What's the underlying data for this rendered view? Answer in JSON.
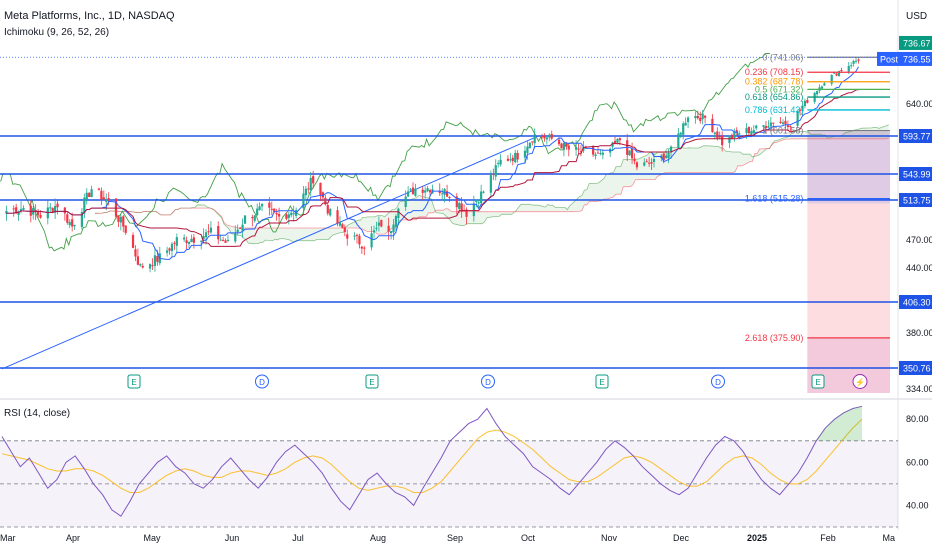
{
  "header": {
    "title": "Meta Platforms, Inc., 1D, NASDAQ",
    "indicator": "Ichimoku (9, 26, 52, 26)",
    "currency": "USD"
  },
  "rsi_panel": {
    "title": "RSI (14, close)"
  },
  "colors": {
    "candle_up": "#22ab94",
    "candle_down": "#f23645",
    "tenkan": "#2962ff",
    "kijun": "#b2163b",
    "leading_a": "#43a047",
    "leading_b": "#f7525f",
    "lagging": "#43a047",
    "level_line": "#1e53e5",
    "rsi_line": "#7e57c2",
    "rsi_ma": "#fbc02d",
    "rsi_band": "#7e57c2"
  },
  "chart_data": [
    {
      "type": "candlestick",
      "title": "Meta Platforms, Inc., 1D, NASDAQ",
      "ylabel": "USD",
      "ylim": [
        325,
        760
      ],
      "price_axis_ticks": [
        334.0,
        350.76,
        380.0,
        406.3,
        440.0,
        470.0,
        513.75,
        543.99,
        593.77,
        640.0,
        736.55,
        736.67
      ],
      "x_tick_labels": [
        "Mar",
        "Apr",
        "May",
        "Jun",
        "Jul",
        "Aug",
        "Sep",
        "Oct",
        "Nov",
        "Dec",
        "2025",
        "Feb",
        "Ma"
      ],
      "close_path": [
        [
          "2024-03-01",
          502
        ],
        [
          "2024-03-08",
          505
        ],
        [
          "2024-03-15",
          497
        ],
        [
          "2024-03-22",
          509
        ],
        [
          "2024-03-28",
          485
        ],
        [
          "2024-04-05",
          527
        ],
        [
          "2024-04-12",
          511
        ],
        [
          "2024-04-19",
          481
        ],
        [
          "2024-04-25",
          441
        ],
        [
          "2024-05-03",
          451
        ],
        [
          "2024-05-10",
          470
        ],
        [
          "2024-05-17",
          472
        ],
        [
          "2024-05-24",
          478
        ],
        [
          "2024-05-31",
          466
        ],
        [
          "2024-06-07",
          494
        ],
        [
          "2024-06-14",
          504
        ],
        [
          "2024-06-21",
          495
        ],
        [
          "2024-06-28",
          504
        ],
        [
          "2024-07-05",
          539
        ],
        [
          "2024-07-12",
          498
        ],
        [
          "2024-07-19",
          476
        ],
        [
          "2024-07-26",
          465
        ],
        [
          "2024-08-02",
          488
        ],
        [
          "2024-08-05",
          475
        ],
        [
          "2024-08-09",
          510
        ],
        [
          "2024-08-16",
          527
        ],
        [
          "2024-08-23",
          528
        ],
        [
          "2024-08-30",
          521
        ],
        [
          "2024-09-06",
          500
        ],
        [
          "2024-09-13",
          524
        ],
        [
          "2024-09-20",
          561
        ],
        [
          "2024-09-27",
          568
        ],
        [
          "2024-10-04",
          595
        ],
        [
          "2024-10-11",
          590
        ],
        [
          "2024-10-18",
          576
        ],
        [
          "2024-10-25",
          573
        ],
        [
          "2024-11-01",
          567
        ],
        [
          "2024-11-08",
          589
        ],
        [
          "2024-11-15",
          554
        ],
        [
          "2024-11-22",
          559
        ],
        [
          "2024-11-29",
          574
        ],
        [
          "2024-12-06",
          624
        ],
        [
          "2024-12-13",
          620
        ],
        [
          "2024-12-20",
          585
        ],
        [
          "2024-12-27",
          599
        ],
        [
          "2025-01-03",
          604
        ],
        [
          "2025-01-10",
          615
        ],
        [
          "2025-01-17",
          612
        ],
        [
          "2025-01-24",
          647
        ],
        [
          "2025-01-31",
          689
        ],
        [
          "2025-02-07",
          714
        ],
        [
          "2025-02-14",
          736
        ]
      ],
      "horizontal_levels": [
        593.77,
        543.99,
        513.75,
        406.3,
        350.76
      ],
      "fibonacci": [
        {
          "ratio": "0",
          "price": 741.06,
          "label": "0 (741.06)"
        },
        {
          "ratio": "0.236",
          "price": 708.15,
          "label": "0.236 (708.15)"
        },
        {
          "ratio": "0.382",
          "price": 687.78,
          "label": "0.382 (687.78)"
        },
        {
          "ratio": "0.5",
          "price": 671.32,
          "label": "0.5 (671.32)"
        },
        {
          "ratio": "0.618",
          "price": 654.86,
          "label": "0.618 (654.86)"
        },
        {
          "ratio": "0.786",
          "price": 631.43,
          "label": "0.786 (631.43)"
        },
        {
          "ratio": "1",
          "price": 601.58,
          "label": "1 (601.58)"
        },
        {
          "ratio": "1.618",
          "price": 515.28,
          "label": "1.618 (515.28)"
        },
        {
          "ratio": "2.618",
          "price": 375.9,
          "label": "2.618 (375.90)"
        }
      ],
      "last_price": 736.67,
      "post_market": {
        "label": "Post",
        "price": 736.55
      },
      "earnings_markers": [
        "E",
        "E",
        "E",
        "E"
      ],
      "dividend_markers": [
        "D",
        "D",
        "D",
        "D"
      ]
    },
    {
      "type": "line",
      "title": "RSI (14, close)",
      "ylim": [
        30,
        88
      ],
      "y_ticks": [
        40.0,
        60.0,
        80.0
      ],
      "bands": [
        30,
        50,
        70
      ],
      "series": [
        {
          "values": [
            72,
            65,
            58,
            62,
            55,
            48,
            52,
            60,
            63,
            57,
            50,
            45,
            38,
            35,
            42,
            50,
            55,
            60,
            63,
            58,
            55,
            50,
            48,
            52,
            58,
            62,
            57,
            52,
            48,
            53,
            60,
            65,
            68,
            64,
            60,
            55,
            48,
            42,
            38,
            45,
            52,
            55,
            50,
            46,
            44,
            40,
            48,
            55,
            62,
            70,
            74,
            78,
            80,
            85,
            78,
            72,
            68,
            64,
            58,
            55,
            52,
            48,
            45,
            50,
            55,
            60,
            66,
            70,
            67,
            63,
            58,
            54,
            50,
            47,
            45,
            48,
            55,
            62,
            68,
            72,
            70,
            65,
            58,
            52,
            48,
            45,
            50,
            55,
            62,
            70,
            76,
            80,
            83,
            85,
            86
          ]
        },
        {
          "values": [
            64,
            63,
            62,
            61,
            59,
            57,
            56,
            56,
            57,
            57,
            56,
            54,
            51,
            48,
            46,
            46,
            48,
            51,
            54,
            56,
            57,
            56,
            54,
            53,
            53,
            55,
            56,
            56,
            55,
            54,
            55,
            57,
            60,
            62,
            63,
            62,
            59,
            55,
            51,
            48,
            47,
            48,
            49,
            49,
            48,
            46,
            46,
            48,
            51,
            56,
            61,
            66,
            71,
            74,
            75,
            74,
            72,
            69,
            66,
            62,
            58,
            55,
            52,
            51,
            51,
            53,
            56,
            59,
            62,
            63,
            62,
            60,
            57,
            54,
            51,
            49,
            49,
            51,
            55,
            59,
            62,
            63,
            62,
            59,
            55,
            52,
            50,
            50,
            52,
            56,
            61,
            66,
            71,
            76,
            80
          ]
        }
      ]
    }
  ]
}
